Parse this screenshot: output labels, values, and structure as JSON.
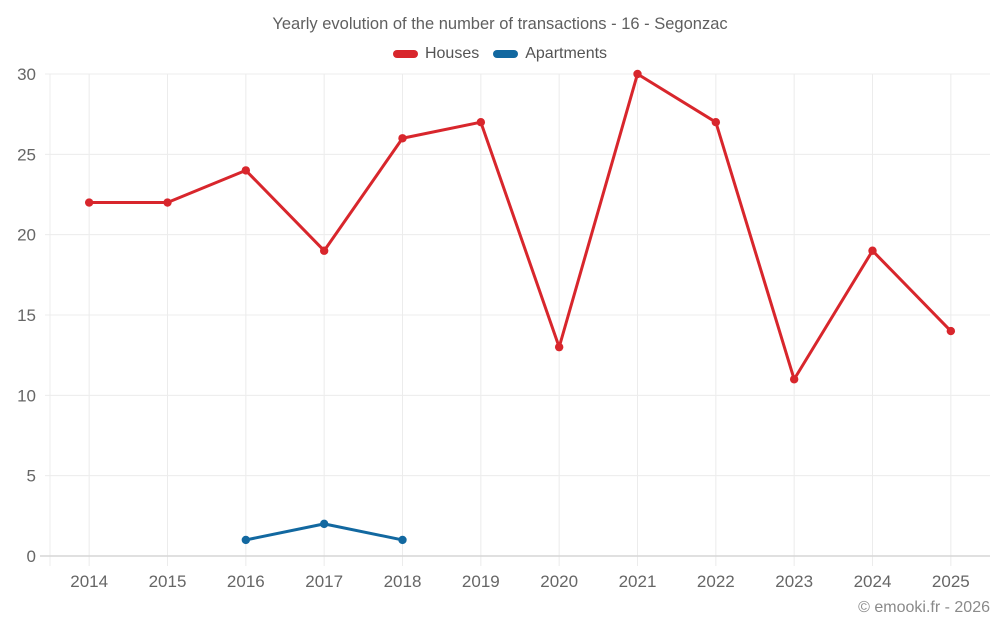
{
  "footer": {
    "credit": "© emooki.fr - 2026"
  },
  "chart_data": {
    "type": "line",
    "title": "Yearly evolution of the number of transactions - 16 - Segonzac",
    "categories": [
      "2014",
      "2015",
      "2016",
      "2017",
      "2018",
      "2019",
      "2020",
      "2021",
      "2022",
      "2023",
      "2024",
      "2025"
    ],
    "series": [
      {
        "name": "Houses",
        "color": "#d8262c",
        "values": [
          22,
          22,
          24,
          19,
          26,
          27,
          13,
          30,
          27,
          11,
          19,
          14
        ]
      },
      {
        "name": "Apartments",
        "color": "#1268a0",
        "values": [
          null,
          null,
          1,
          2,
          1,
          null,
          null,
          null,
          null,
          null,
          null,
          null
        ]
      }
    ],
    "ylim": [
      0,
      30
    ],
    "ytick_step": 5,
    "xlabel": "",
    "ylabel": "",
    "grid": true,
    "legend_position": "top",
    "colors": {
      "gridline": "#ececec",
      "axis_line": "#d6d6d6",
      "tick_label": "#666666"
    }
  }
}
